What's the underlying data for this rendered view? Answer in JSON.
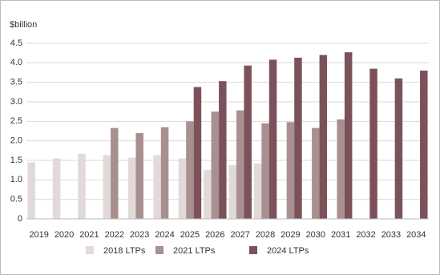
{
  "chart_data": {
    "type": "bar",
    "y_label": "$billion",
    "categories": [
      "2019",
      "2020",
      "2021",
      "2022",
      "2023",
      "2024",
      "2025",
      "2026",
      "2027",
      "2028",
      "2029",
      "2030",
      "2031",
      "2032",
      "2033",
      "2034"
    ],
    "series": [
      {
        "name": "2018 LTPs",
        "color": "#e2d9d9",
        "values": [
          1.45,
          1.55,
          1.67,
          1.63,
          1.57,
          1.63,
          1.55,
          1.25,
          1.38,
          1.42,
          null,
          null,
          null,
          null,
          null,
          null
        ]
      },
      {
        "name": "2021 LTPs",
        "color": "#a98f90",
        "values": [
          null,
          null,
          null,
          2.33,
          2.2,
          2.35,
          2.5,
          2.75,
          2.78,
          2.45,
          2.48,
          2.33,
          2.55,
          null,
          null,
          null
        ]
      },
      {
        "name": "2024 LTPs",
        "color": "#7c525a",
        "values": [
          null,
          null,
          null,
          null,
          null,
          null,
          3.38,
          3.53,
          3.93,
          4.08,
          4.13,
          4.2,
          4.27,
          3.85,
          3.6,
          3.8
        ]
      }
    ],
    "ylim": [
      0,
      4.5
    ],
    "yticks": [
      0,
      0.5,
      {
        "value": 1,
        "label": "1.0"
      },
      1.5,
      {
        "value": 2,
        "label": "2.0"
      },
      2.5,
      {
        "value": 3,
        "label": "3.0"
      },
      3.5,
      {
        "value": 4,
        "label": "4.0"
      },
      4.5
    ],
    "grid": true,
    "legend": "bottom"
  }
}
